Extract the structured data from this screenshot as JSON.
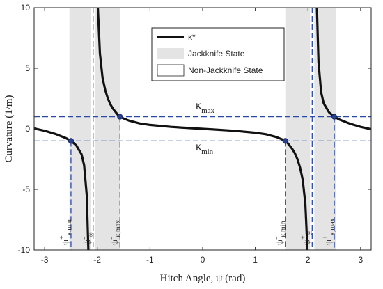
{
  "chart_data": {
    "type": "line",
    "xlabel": "Hitch Angle, ψ (rad)",
    "ylabel": "Curvature (1/m)",
    "xlim": [
      -3.2,
      3.2
    ],
    "ylim": [
      -10,
      10
    ],
    "xticks": [
      -3,
      -2,
      -1,
      0,
      1,
      2,
      3
    ],
    "yticks": [
      -10,
      -5,
      0,
      5,
      10
    ],
    "grid": false,
    "legend_position": "top-right",
    "legend": [
      {
        "label": "κ*",
        "kind": "line"
      },
      {
        "label": "Jackknife State",
        "kind": "fill-gray"
      },
      {
        "label": "Non-Jackknife State",
        "kind": "fill-white"
      }
    ],
    "series": [
      {
        "name": "κ*",
        "color": "#111111",
        "segments": [
          {
            "x": [
              -3.2,
              -3.0,
              -2.8,
              -2.6,
              -2.5,
              -2.4,
              -2.3,
              -2.25,
              -2.2,
              -2.17
            ],
            "y": [
              0.03,
              -0.16,
              -0.42,
              -0.76,
              -1.0,
              -1.36,
              -2.1,
              -3.0,
              -5.5,
              -10.0
            ]
          },
          {
            "x": [
              -1.99,
              -1.95,
              -1.9,
              -1.85,
              -1.8,
              -1.75,
              -1.7,
              -1.6,
              -1.57,
              -1.5,
              -1.4,
              -1.2,
              -1.0,
              -0.6,
              -0.2,
              0.0,
              0.2,
              0.6,
              1.0,
              1.2,
              1.4,
              1.5,
              1.57,
              1.6,
              1.7,
              1.75,
              1.8,
              1.85,
              1.9,
              1.95,
              1.99
            ],
            "y": [
              10.0,
              6.2,
              4.2,
              3.2,
              2.5,
              2.0,
              1.65,
              1.1,
              1.0,
              0.85,
              0.68,
              0.45,
              0.32,
              0.16,
              0.05,
              0.0,
              -0.05,
              -0.16,
              -0.32,
              -0.45,
              -0.68,
              -0.85,
              -1.0,
              -1.1,
              -1.65,
              -2.0,
              -2.5,
              -3.2,
              -4.2,
              -6.2,
              -10.0
            ]
          },
          {
            "x": [
              2.17,
              2.2,
              2.25,
              2.3,
              2.4,
              2.5,
              2.6,
              2.8,
              3.0,
              3.2
            ],
            "y": [
              10.0,
              5.5,
              3.0,
              2.1,
              1.36,
              1.0,
              0.76,
              0.42,
              0.16,
              -0.03
            ]
          }
        ]
      }
    ],
    "jackknife_regions": [
      [
        -2.53,
        -2.12
      ],
      [
        -2.04,
        -1.57
      ],
      [
        1.57,
        2.04
      ],
      [
        2.12,
        2.53
      ]
    ],
    "kappa_max": 1,
    "kappa_min": -1,
    "marker_points": [
      {
        "x": -2.5,
        "y": -1
      },
      {
        "x": -1.57,
        "y": 1
      },
      {
        "x": 1.57,
        "y": -1
      },
      {
        "x": 2.5,
        "y": 1
      }
    ],
    "vertical_lines": [
      -2.5,
      -2.08,
      -1.57,
      1.57,
      2.08,
      2.5
    ],
    "annotations": {
      "kappa_max_label": {
        "main": "κ",
        "sub": "max"
      },
      "kappa_min_label": {
        "main": "κ",
        "sub": "min"
      },
      "psi_labels": [
        {
          "x": -2.5,
          "main": "ψ",
          "sup": "+",
          "sub": "κ,min"
        },
        {
          "x": -2.08,
          "main": "ψ",
          "sup": "-",
          "sub": "∞"
        },
        {
          "x": -1.57,
          "main": "ψ",
          "sup": "-",
          "sub": "κ,max"
        },
        {
          "x": 1.57,
          "main": "ψ",
          "sup": "-",
          "sub": "κ,min"
        },
        {
          "x": 2.08,
          "main": "ψ",
          "sup": "+",
          "sub": "∞"
        },
        {
          "x": 2.5,
          "main": "ψ",
          "sup": "+",
          "sub": "κ,max"
        }
      ]
    }
  }
}
